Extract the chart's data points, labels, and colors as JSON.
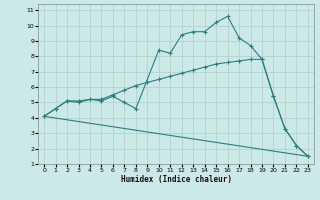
{
  "xlabel": "Humidex (Indice chaleur)",
  "background_color": "#cce8e8",
  "grid_color": "#aacfcf",
  "line_color": "#2d7d7d",
  "xlim": [
    -0.5,
    23.5
  ],
  "ylim": [
    1,
    11.4
  ],
  "xticks": [
    0,
    1,
    2,
    3,
    4,
    5,
    6,
    7,
    8,
    9,
    10,
    11,
    12,
    13,
    14,
    15,
    16,
    17,
    18,
    19,
    20,
    21,
    22,
    23
  ],
  "yticks": [
    1,
    2,
    3,
    4,
    5,
    6,
    7,
    8,
    9,
    10,
    11
  ],
  "series1_x": [
    0,
    1,
    2,
    3,
    4,
    5,
    6,
    7,
    8,
    10,
    11,
    12,
    13,
    14,
    15,
    16,
    17,
    18,
    19,
    20,
    21,
    22,
    23
  ],
  "series1_y": [
    4.1,
    4.6,
    5.1,
    5.1,
    5.2,
    5.1,
    5.4,
    5.0,
    4.6,
    8.4,
    8.2,
    9.4,
    9.6,
    9.6,
    10.2,
    10.6,
    9.2,
    8.7,
    7.8,
    5.4,
    3.3,
    2.2,
    1.5
  ],
  "series2_x": [
    0,
    1,
    2,
    3,
    4,
    5,
    6,
    7,
    8,
    9,
    10,
    11,
    12,
    13,
    14,
    15,
    16,
    17,
    18,
    19,
    20,
    21,
    22,
    23
  ],
  "series2_y": [
    4.1,
    4.6,
    5.1,
    5.0,
    5.2,
    5.2,
    5.5,
    5.8,
    6.1,
    6.3,
    6.5,
    6.7,
    6.9,
    7.1,
    7.3,
    7.5,
    7.6,
    7.7,
    7.8,
    7.8,
    5.4,
    3.3,
    2.2,
    1.5
  ],
  "series3_x": [
    0,
    23
  ],
  "series3_y": [
    4.1,
    1.5
  ]
}
